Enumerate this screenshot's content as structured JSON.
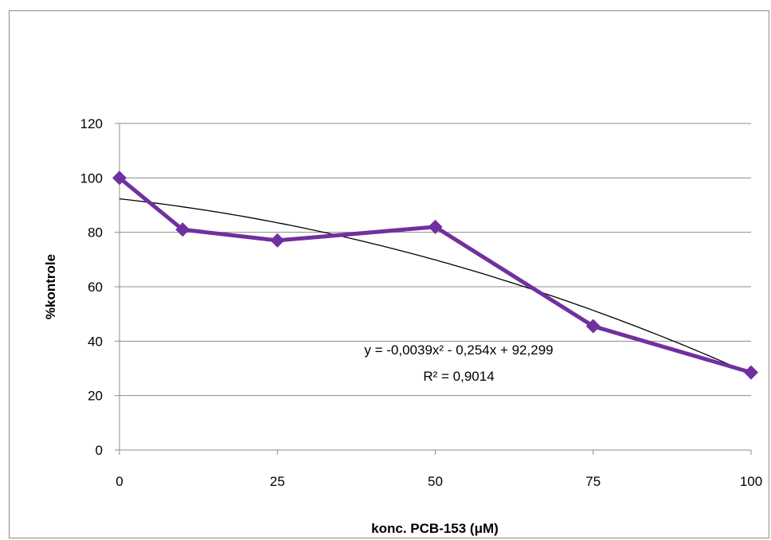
{
  "chart_data": {
    "type": "line",
    "title": "",
    "xlabel": "konc. PCB-153 (μM)",
    "ylabel": "%kontrole",
    "categories": [
      "0",
      "10",
      "25",
      "50",
      "75",
      "100"
    ],
    "category_positions": [
      0,
      10,
      25,
      50,
      75,
      100
    ],
    "x_tick_labels": [
      "0",
      "25",
      "50",
      "75",
      "100"
    ],
    "xlim": [
      0,
      100
    ],
    "ylim": [
      0,
      120
    ],
    "y_tick_labels": [
      "0",
      "20",
      "40",
      "60",
      "80",
      "100",
      "120"
    ],
    "y_ticks": [
      0,
      20,
      40,
      60,
      80,
      100,
      120
    ],
    "grid": true,
    "legend": "none",
    "series": [
      {
        "values": [
          100,
          81,
          77,
          82,
          45.5,
          28.5
        ],
        "color": "#7030a0",
        "marker": "diamond"
      }
    ],
    "trendline": {
      "type": "polynomial",
      "order": 2,
      "coefficients": {
        "a": -0.0039,
        "b": -0.254,
        "c": 92.299
      },
      "color": "#000000",
      "equation_label": "y = -0,0039x² - 0,254x + 92,299",
      "r2_label": "R² = 0,9014"
    }
  }
}
